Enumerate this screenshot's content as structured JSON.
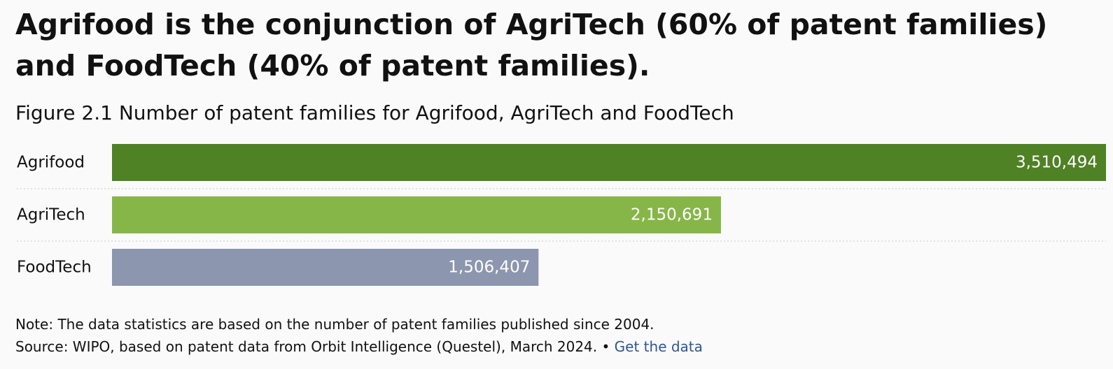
{
  "headline": "Agrifood is the conjunction of AgriTech (60% of patent families) and FoodTech (40% of patent families).",
  "footer": {
    "note": "Note: The data statistics are based on the number of patent families published since 2004.",
    "source": "Source: WIPO, based on patent data from Orbit Intelligence (Questel), March 2024.",
    "separator": "•",
    "link_label": "Get the data"
  },
  "colors": {
    "agrifood": "#4f8125",
    "agritech": "#86b648",
    "foodtech": "#8c96ae",
    "gridline": "#c8c8c8",
    "link": "#2f5597"
  },
  "chart_data": {
    "type": "bar",
    "orientation": "horizontal",
    "title": "Figure 2.1 Number of patent families for Agrifood, AgriTech and FoodTech",
    "categories": [
      "Agrifood",
      "AgriTech",
      "FoodTech"
    ],
    "values": [
      3510494,
      2150691,
      1506407
    ],
    "value_labels": [
      "3,510,494",
      "2,150,691",
      "1,506,407"
    ],
    "xlim": [
      0,
      3510494
    ],
    "grid": false,
    "legend": "none"
  }
}
